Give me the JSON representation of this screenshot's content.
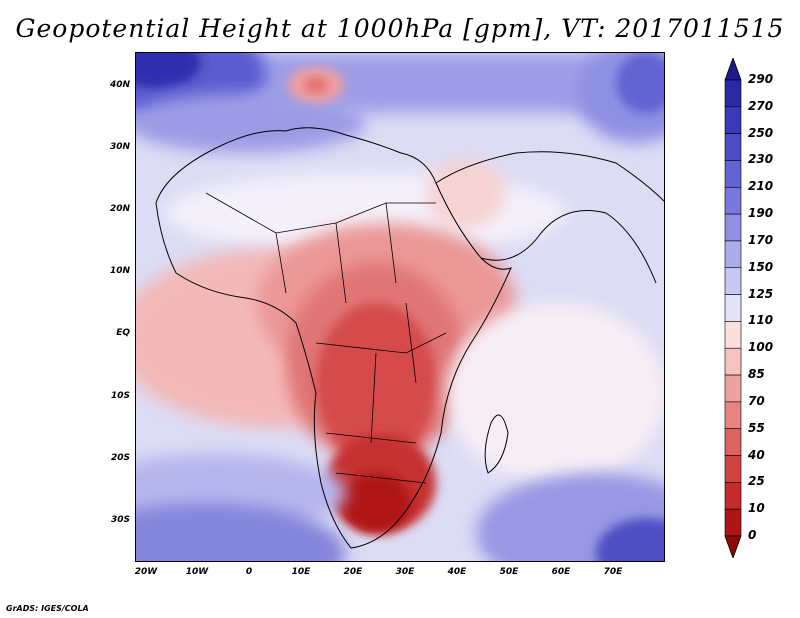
{
  "title": "Geopotential Height at 1000hPa [gpm], VT: 2017011515",
  "credit": "GrADS: IGES/COLA",
  "map": {
    "lat_labels": [
      "40N",
      "30N",
      "20N",
      "10N",
      "EQ",
      "10S",
      "20S",
      "30S"
    ],
    "lon_labels": [
      "20W",
      "10W",
      "0",
      "10E",
      "20E",
      "30E",
      "40E",
      "50E",
      "60E",
      "70E"
    ],
    "extent": {
      "lon_min": -20,
      "lon_max": 80,
      "lat_min": -37,
      "lat_max": 45
    }
  },
  "legend": {
    "levels": [
      "290",
      "270",
      "250",
      "230",
      "210",
      "190",
      "170",
      "150",
      "125",
      "110",
      "100",
      "85",
      "70",
      "55",
      "40",
      "25",
      "10",
      "0"
    ],
    "colors": [
      "#1f1a8c",
      "#2b2aa6",
      "#3a3ab8",
      "#4d4ec6",
      "#6262d2",
      "#7878dc",
      "#9090e4",
      "#abacec",
      "#c8c9f3",
      "#e4e4f8",
      "#fbe0df",
      "#f6c3c1",
      "#efa3a1",
      "#e78381",
      "#dd6261",
      "#d24444",
      "#c42b2b",
      "#b01515",
      "#8e0a0a"
    ]
  }
}
